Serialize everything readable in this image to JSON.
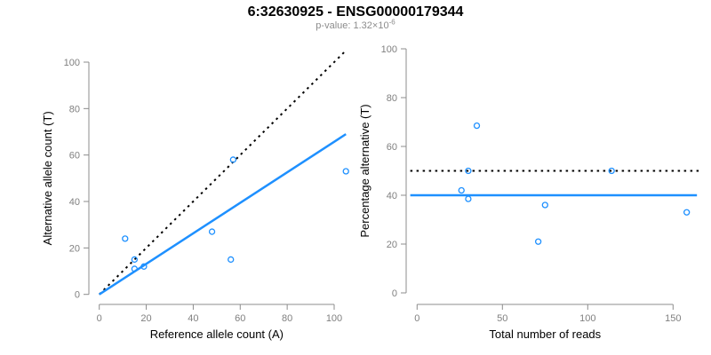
{
  "figure": {
    "title": "6:32630925 - ENSG00000179344",
    "subtitle_prefix": "p-value: 1.32×10",
    "subtitle_exponent": "-6"
  },
  "colors": {
    "point_blue": "#1E90FF",
    "line_blue": "#1E90FF",
    "line_dotted": "#000000",
    "axis": "#8c8c8c",
    "tick_label": "#808080",
    "axis_title": "#000000",
    "subtitle": "#8c8c8c",
    "title": "#000000"
  },
  "chart_data": [
    {
      "type": "scatter",
      "panel": "left",
      "xlabel": "Reference allele count (A)",
      "ylabel": "Alternative allele count (T)",
      "xlim": [
        0,
        100
      ],
      "ylim": [
        0,
        100
      ],
      "x_ticks": [
        0,
        20,
        40,
        60,
        80,
        100
      ],
      "y_ticks": [
        0,
        20,
        40,
        60,
        80,
        100
      ],
      "grid": false,
      "legend": "none",
      "points": [
        [
          11,
          24
        ],
        [
          15,
          15
        ],
        [
          15,
          11
        ],
        [
          19,
          12
        ],
        [
          48,
          27
        ],
        [
          56,
          15
        ],
        [
          57,
          58
        ],
        [
          105,
          53
        ]
      ],
      "lines": [
        {
          "name": "identity-line",
          "style": "dotted",
          "color": "line_dotted",
          "x1": 0,
          "y1": 0,
          "x2": 104.6,
          "y2": 104.6
        },
        {
          "name": "fit-line",
          "style": "solid",
          "color": "line_blue",
          "x1": 0,
          "y1": 0,
          "x2": 105,
          "y2": 69
        }
      ]
    },
    {
      "type": "scatter",
      "panel": "right",
      "xlabel": "Total number of reads",
      "ylabel": "Percentage alternative (T)",
      "xlim": [
        0,
        157
      ],
      "ylim": [
        0,
        100
      ],
      "x_ticks": [
        0,
        50,
        100,
        150
      ],
      "y_ticks": [
        0,
        20,
        40,
        60,
        80,
        100
      ],
      "grid": false,
      "legend": "none",
      "points": [
        [
          26,
          42
        ],
        [
          30,
          50
        ],
        [
          30,
          38.5
        ],
        [
          35,
          68.5
        ],
        [
          71,
          21
        ],
        [
          75,
          36
        ],
        [
          114,
          50
        ],
        [
          158,
          33
        ]
      ],
      "lines": [
        {
          "name": "expected-percentage-line",
          "style": "dotted",
          "color": "line_dotted",
          "x1": -4,
          "y1": 50,
          "x2": 166,
          "y2": 50
        },
        {
          "name": "mean-percentage-line",
          "style": "solid",
          "color": "line_blue",
          "x1": -4,
          "y1": 40,
          "x2": 164,
          "y2": 40
        }
      ]
    }
  ]
}
